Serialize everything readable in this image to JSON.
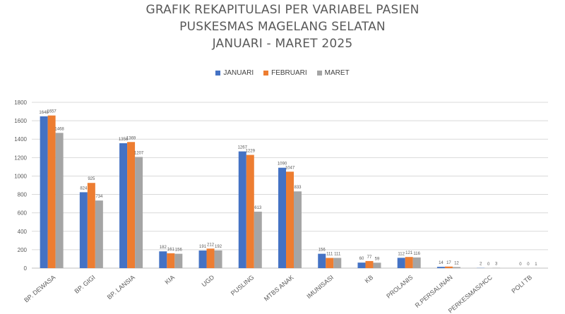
{
  "title_lines": [
    "GRAFIK REKAPITULASI PER VARIABEL PASIEN",
    "PUSKESMAS MAGELANG SELATAN",
    "JANUARI - MARET 2025"
  ],
  "colors": {
    "JANUARI": "#4472c4",
    "FEBRUARI": "#ed7d31",
    "MARET": "#a5a5a5",
    "grid": "#d9d9d9",
    "text": "#595959"
  },
  "chart_data": {
    "type": "bar",
    "title": "GRAFIK REKAPITULASI PER VARIABEL PASIEN PUSKESMAS MAGELANG SELATAN JANUARI - MARET 2025",
    "categories": [
      "BP. DEWASA",
      "BP. GIGI",
      "BP. LANSIA",
      "KIA",
      "UGD",
      "PUSLING",
      "MTBS ANAK",
      "IMUNISASI",
      "KB",
      "PROLANIS",
      "R.PERSALINAN",
      "PERKESMAS/HCC",
      "POLI TB"
    ],
    "series": [
      {
        "name": "JANUARI",
        "values": [
          1648,
          824,
          1356,
          182,
          191,
          1267,
          1090,
          156,
          60,
          112,
          14,
          2,
          0
        ]
      },
      {
        "name": "FEBRUARI",
        "values": [
          1657,
          925,
          1369,
          161,
          212,
          1229,
          1047,
          111,
          77,
          121,
          17,
          0,
          0
        ]
      },
      {
        "name": "MARET",
        "values": [
          1468,
          734,
          1207,
          156,
          192,
          613,
          833,
          111,
          59,
          116,
          12,
          3,
          1
        ]
      }
    ],
    "ylim": [
      0,
      1800
    ],
    "yticks": [
      0,
      200,
      400,
      600,
      800,
      1000,
      1200,
      1400,
      1600,
      1800
    ],
    "legend_position": "top-center",
    "grid": true
  }
}
